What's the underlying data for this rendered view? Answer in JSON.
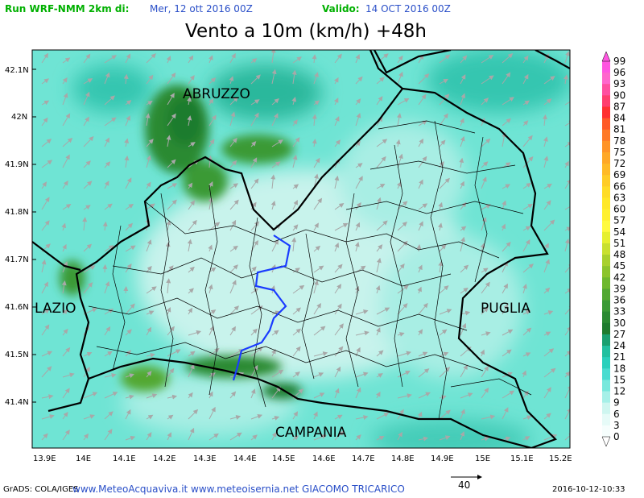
{
  "header": {
    "run_label": "Run WRF-NMM 2km di:",
    "run_date": "Mer, 12 ott 2016 00Z",
    "valid_label": "Valido:",
    "valid_date": "14 OCT 2016 00Z",
    "title": "Vento a 10m (km/h) +48h"
  },
  "axes": {
    "lat_labels": [
      "42.1N",
      "42N",
      "41.9N",
      "41.8N",
      "41.7N",
      "41.6N",
      "41.5N",
      "41.4N"
    ],
    "lon_labels": [
      "13.9E",
      "14E",
      "14.1E",
      "14.2E",
      "14.3E",
      "14.4E",
      "14.5E",
      "14.6E",
      "14.7E",
      "14.8E",
      "14.9E",
      "15E",
      "15.1E",
      "15.2E"
    ]
  },
  "regions": {
    "abruzzo": "ABRUZZO",
    "lazio": "LAZIO",
    "puglia": "PUGLIA",
    "campania": "CAMPANIA"
  },
  "colorbar": {
    "values": [
      "99",
      "96",
      "93",
      "90",
      "87",
      "84",
      "81",
      "78",
      "75",
      "72",
      "69",
      "66",
      "63",
      "60",
      "57",
      "54",
      "51",
      "48",
      "45",
      "42",
      "39",
      "36",
      "33",
      "30",
      "27",
      "24",
      "21",
      "18",
      "15",
      "12",
      "9",
      "6",
      "3",
      "0"
    ],
    "colors": [
      "#ff55e0",
      "#ff66cc",
      "#ff4fa0",
      "#ff3e6e",
      "#ff3030",
      "#ff5a28",
      "#ff7a28",
      "#ff9428",
      "#ffa828",
      "#ffba28",
      "#ffcc28",
      "#ffdc28",
      "#ffe828",
      "#fff030",
      "#fffa40",
      "#e6f030",
      "#c8e030",
      "#a8d02e",
      "#8cc42c",
      "#6eb82e",
      "#52a832",
      "#3a9a36",
      "#2a8a32",
      "#1e7c2e",
      "#1aa070",
      "#22c0a0",
      "#2ad0bc",
      "#4adcd0",
      "#78e8dc",
      "#a6f0e8",
      "#cef6f0",
      "#e6fbf8",
      "#f6fefd"
    ]
  },
  "footer": {
    "grads": "GrADS: COLA/IGES",
    "credits": "www.MeteoAcquaviva.it  www.meteoisernia.net  GIACOMO  TRICARICO",
    "stamp": "2016-10-12-10:33",
    "scale_value": "40"
  }
}
